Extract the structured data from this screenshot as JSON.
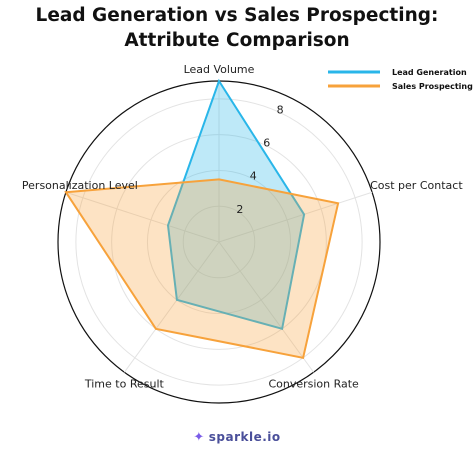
{
  "chart_data": {
    "type": "radar",
    "title_line1": "Lead Generation vs Sales Prospecting:",
    "title_line2": "Attribute Comparison",
    "axes": [
      "Lead Volume",
      "Cost per Contact",
      "Conversion Rate",
      "Time to Result",
      "Personalization Level"
    ],
    "radial_ticks": [
      "2",
      "4",
      "6",
      "8"
    ],
    "rmax": 9,
    "grid": true,
    "legend_position": "top-right",
    "series": [
      {
        "name": "Lead Generation",
        "values": [
          9,
          5,
          6,
          4,
          3
        ],
        "color": "#29b6e9",
        "fill": "rgba(41,182,233,0.30)"
      },
      {
        "name": "Sales Prospecting",
        "values": [
          3.5,
          7,
          8,
          6,
          9
        ],
        "color": "#f7a23b",
        "fill": "rgba(247,162,59,0.30)"
      }
    ]
  },
  "footer": {
    "brand": "sparkle.io",
    "logo_icon": "sparkle-icon"
  }
}
